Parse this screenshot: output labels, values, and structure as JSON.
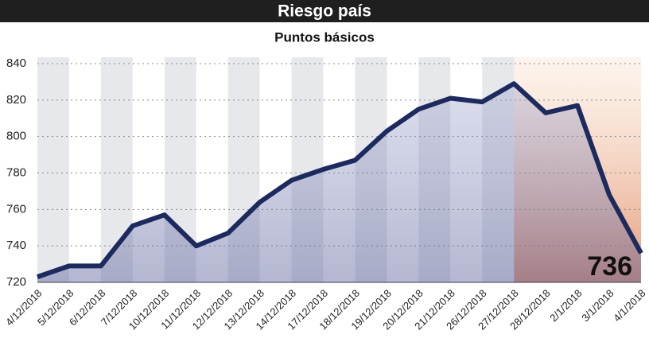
{
  "chart_data": {
    "type": "line",
    "title": "Riesgo país",
    "subtitle": "Puntos básicos",
    "annotation": "736",
    "categories": [
      "4/12/2018",
      "5/12/2018",
      "6/12/2018",
      "7/12/2018",
      "10/12/2018",
      "11/12/2018",
      "12/12/2018",
      "13/12/2018",
      "14/12/2018",
      "17/12/2018",
      "18/12/2018",
      "19/12/2018",
      "20/12/2018",
      "21/12/2018",
      "26/12/2018",
      "27/12/2018",
      "28/12/2018",
      "2/1/2018",
      "3/1/2018",
      "4/1/2018"
    ],
    "values": [
      723,
      729,
      729,
      751,
      757,
      740,
      747,
      764,
      776,
      782,
      787,
      803,
      815,
      821,
      819,
      829,
      813,
      817,
      768,
      736
    ],
    "color": "#1c2a5e",
    "ylim": [
      720,
      840
    ],
    "yticks": [
      720,
      740,
      760,
      780,
      800,
      820,
      840
    ],
    "grid": true
  }
}
